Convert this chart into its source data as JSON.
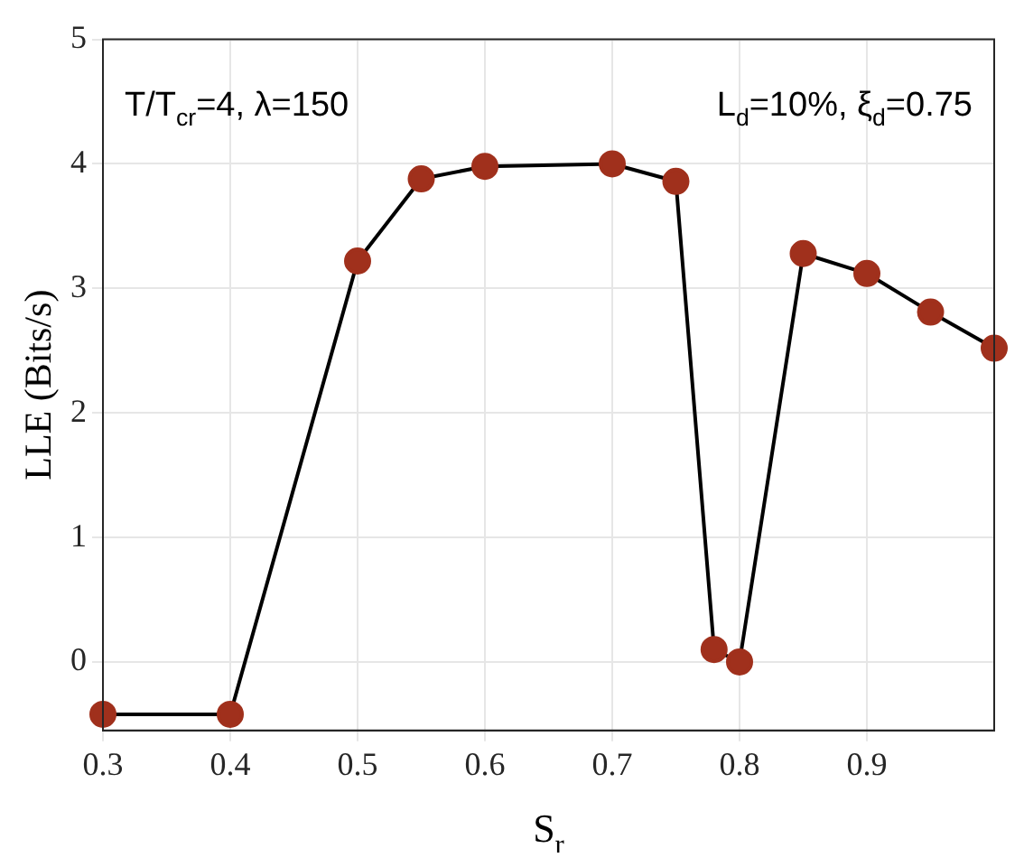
{
  "chart_data": {
    "type": "line",
    "xlabel": "S$_{r}$",
    "ylabel": "LLE (Bits/s)",
    "annotations": [
      "T/T$_{cr}$=4, λ=150",
      "L$_{d}$=10%, ξ$_{d}$=0.75"
    ],
    "x": [
      0.3,
      0.4,
      0.5,
      0.55,
      0.6,
      0.7,
      0.75,
      0.78,
      0.8,
      0.85,
      0.9,
      0.95,
      1.0
    ],
    "series": [
      {
        "color": "#a0301c",
        "values": [
          -0.42,
          -0.42,
          3.22,
          3.88,
          3.98,
          4.0,
          3.86,
          0.1,
          0.0,
          3.28,
          3.12,
          2.81,
          2.52
        ]
      }
    ],
    "xlim": [
      0.3,
      1.0
    ],
    "xticks": [
      0.3,
      0.4,
      0.5,
      0.6,
      0.7,
      0.8,
      0.9
    ],
    "ylim": [
      -0.55,
      5
    ],
    "yticks": [
      0,
      1,
      2,
      3,
      4,
      5
    ],
    "grid": true,
    "legend": false,
    "marker": "circle",
    "line_style": "solid"
  }
}
